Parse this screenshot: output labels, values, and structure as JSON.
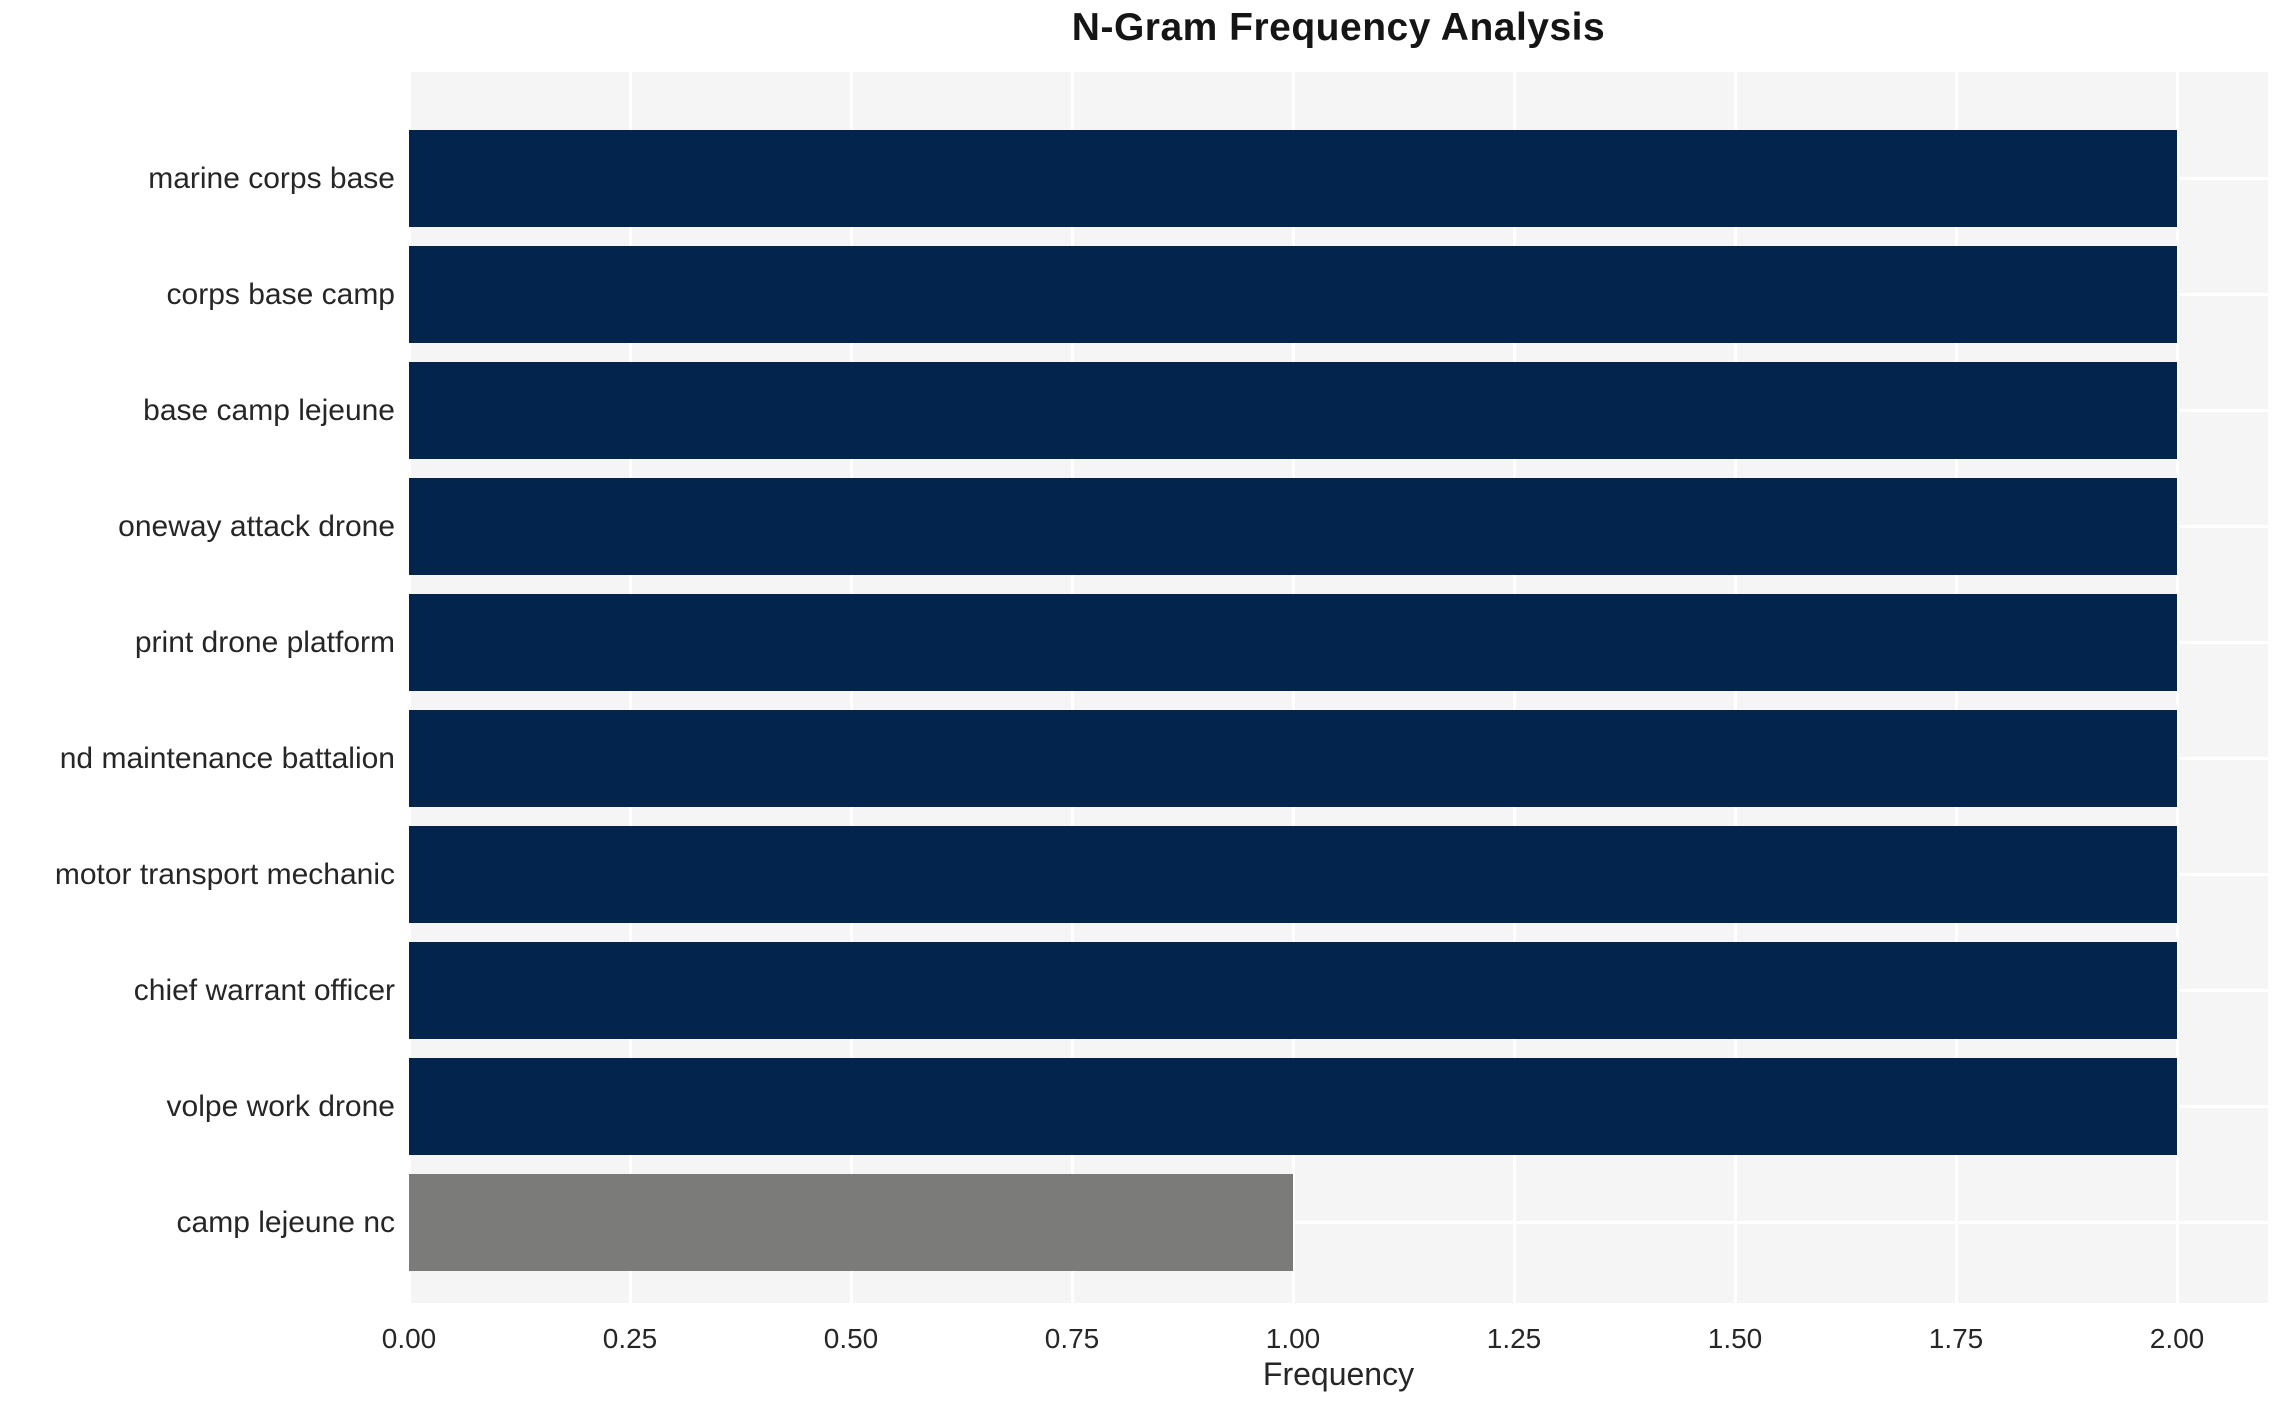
{
  "chart_data": {
    "type": "bar",
    "orientation": "horizontal",
    "title": "N-Gram Frequency Analysis",
    "xlabel": "Frequency",
    "ylabel": "",
    "categories": [
      "marine corps base",
      "corps base camp",
      "base camp lejeune",
      "oneway attack drone",
      "print drone platform",
      "nd maintenance battalion",
      "motor transport mechanic",
      "chief warrant officer",
      "volpe work drone",
      "camp lejeune nc"
    ],
    "values": [
      2,
      2,
      2,
      2,
      2,
      2,
      2,
      2,
      2,
      1
    ],
    "bar_colors": [
      "#03254d",
      "#03254d",
      "#03254d",
      "#03254d",
      "#03254d",
      "#03254d",
      "#03254d",
      "#03254d",
      "#03254d",
      "#7b7b79"
    ],
    "xlim": [
      0,
      2.1
    ],
    "xticks": [
      0,
      0.25,
      0.5,
      0.75,
      1.0,
      1.25,
      1.5,
      1.75,
      2.0
    ],
    "xtick_labels": [
      "0.00",
      "0.25",
      "0.50",
      "0.75",
      "1.00",
      "1.25",
      "1.50",
      "1.75",
      "2.00"
    ],
    "grid": true,
    "legend": false,
    "colors": {
      "bar_primary": "#03254d",
      "bar_highlight": "#7b7b79",
      "plot_background": "#f5f5f5",
      "figure_background": "#ffffff",
      "gridline": "#ffffff",
      "text": "#262626",
      "title_text": "#151515"
    }
  }
}
